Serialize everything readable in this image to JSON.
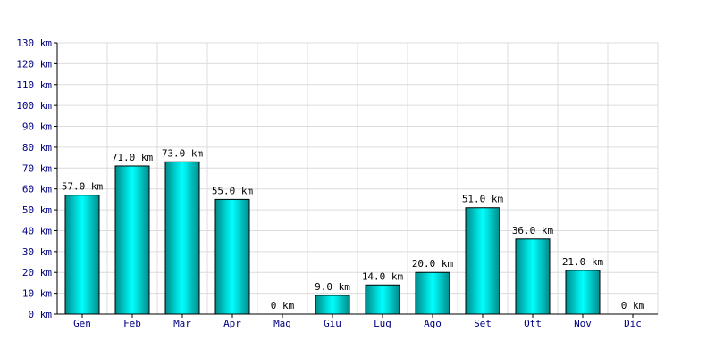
{
  "chart_data": {
    "type": "bar",
    "title": "",
    "xlabel": "",
    "ylabel": "",
    "unit": "km",
    "ylim": [
      0,
      130
    ],
    "ytick_step": 10,
    "ytick_labels": [
      "0 km",
      "10 km",
      "20 km",
      "30 km",
      "40 km",
      "50 km",
      "60 km",
      "70 km",
      "80 km",
      "90 km",
      "100 km",
      "110 km",
      "120 km",
      "130 km"
    ],
    "grid": true,
    "categories": [
      "Gen",
      "Feb",
      "Mar",
      "Apr",
      "Mag",
      "Giu",
      "Lug",
      "Ago",
      "Set",
      "Ott",
      "Nov",
      "Dic"
    ],
    "values": [
      57.0,
      71.0,
      73.0,
      55.0,
      0,
      9.0,
      14.0,
      20.0,
      51.0,
      36.0,
      21.0,
      0
    ],
    "data_labels": [
      "57.0 km",
      "71.0 km",
      "73.0 km",
      "55.0 km",
      "0 km",
      "9.0 km",
      "14.0 km",
      "20.0 km",
      "51.0 km",
      "36.0 km",
      "21.0 km",
      "0 km"
    ],
    "colors": {
      "bar_light": "#00ffff",
      "bar_dark": "#008b8b",
      "bar_stroke": "#000000",
      "grid": "#dcdcdc",
      "axis": "#000000",
      "tick_text": "#000080"
    }
  }
}
